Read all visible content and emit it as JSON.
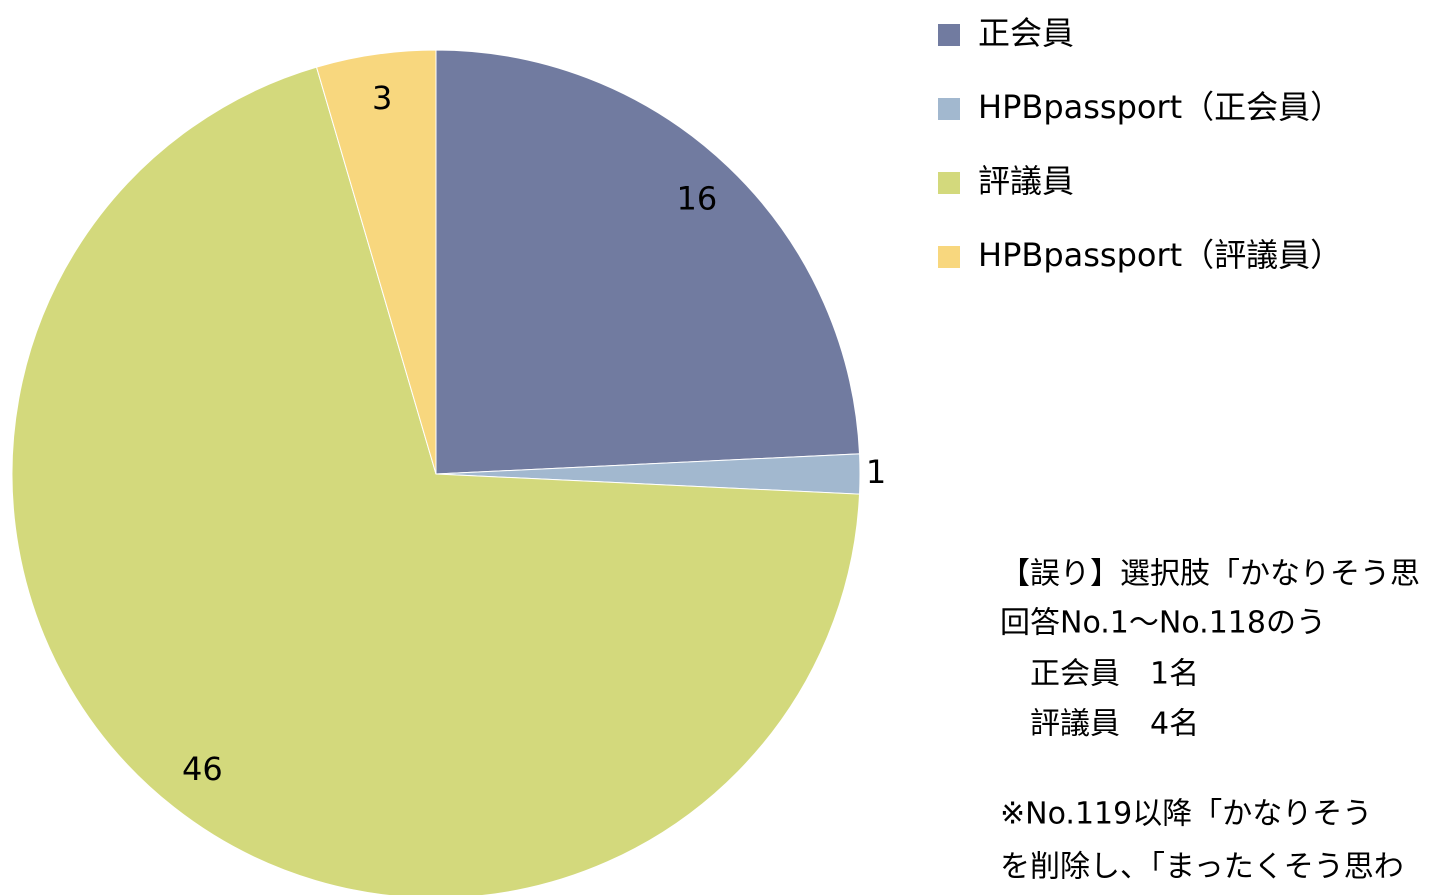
{
  "chart_data": {
    "type": "pie",
    "categories": [
      "正会員",
      "HPBpassport（正会員）",
      "評議員",
      "HPBpassport（評議員）"
    ],
    "values": [
      16,
      1,
      46,
      3
    ],
    "colors": [
      "#717ba0",
      "#a2b8cf",
      "#d3d97c",
      "#f8d77e"
    ],
    "legend": "right",
    "annotation": [
      "【誤り】選択肢「かなりそう思",
      "回答No.1～No.118のう",
      "　正会員　1名",
      "　評議員　4名",
      "",
      "※No.119以降「かなりそう",
      "を削除し、「まったくそう思わ"
    ]
  }
}
